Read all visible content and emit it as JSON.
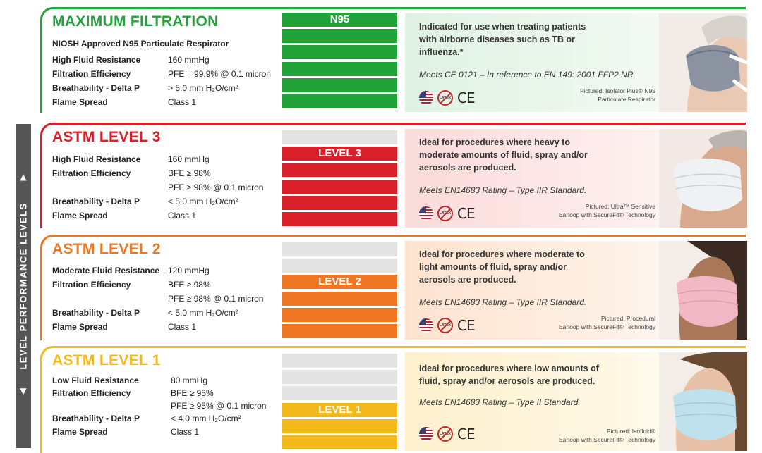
{
  "sidebar": {
    "label": "LEVEL PERFORMANCE LEVELS",
    "up_arrow": "▲",
    "down_arrow": "▼"
  },
  "sections": [
    {
      "title": "MAXIMUM FILTRATION",
      "color": "#22a33a",
      "subtitle": "NIOSH Approved N95 Particulate Respirator",
      "specs": [
        {
          "label": "High Fluid Resistance",
          "value": "160 mmHg"
        },
        {
          "label": "Filtration Efficiency",
          "value": "PFE = 99.9% @ 0.1 micron"
        },
        {
          "label": "Breathability - Delta P",
          "value": "> 5.0 mm H₂O/cm²"
        },
        {
          "label": "Flame Spread",
          "value": "Class 1"
        }
      ],
      "bar_label": "N95",
      "bars_filled": 6,
      "bars_total": 6,
      "info": "Indicated for use when treating patients with airborne diseases such as TB or influenza.*",
      "meets": "Meets CE 0121 – In reference to EN 149: 2001 FFP2 NR.",
      "pictured_line1": "Pictured: Isolator Plus® N95",
      "pictured_line2": "Particulate Respirator",
      "latex": "LATEX",
      "ce": "CE"
    },
    {
      "title": "ASTM LEVEL 3",
      "color": "#d9202a",
      "specs": [
        {
          "label": "High Fluid Resistance",
          "value": "160 mmHg"
        },
        {
          "label": "Filtration Efficiency",
          "value": "BFE ≥ 98%"
        },
        {
          "label": "",
          "value": "PFE ≥ 98% @ 0.1 micron"
        },
        {
          "label": "Breathability - Delta P",
          "value": "< 5.0 mm H₂O/cm²"
        },
        {
          "label": "Flame Spread",
          "value": "Class 1"
        }
      ],
      "bar_label": "LEVEL 3",
      "bars_filled": 5,
      "bars_total": 6,
      "info": "Ideal for procedures where heavy to moderate amounts of fluid, spray and/or aerosols are produced.",
      "meets": "Meets EN14683 Rating – Type IIR Standard.",
      "pictured_line1": "Pictured: Ultra™ Sensitive",
      "pictured_line2": "Earloop with SecureFit® Technology",
      "latex": "LATEX",
      "ce": "CE"
    },
    {
      "title": "ASTM  LEVEL 2",
      "color": "#ef7622",
      "specs": [
        {
          "label": "Moderate Fluid Resistance",
          "value": "120 mmHg"
        },
        {
          "label": "Filtration Efficiency",
          "value": "BFE ≥ 98%"
        },
        {
          "label": "",
          "value": "PFE ≥ 98% @ 0.1 micron"
        },
        {
          "label": "Breathability - Delta P",
          "value": "< 5.0 mm H₂O/cm²"
        },
        {
          "label": "Flame Spread",
          "value": "Class 1"
        }
      ],
      "bar_label": "LEVEL 2",
      "bars_filled": 4,
      "bars_total": 6,
      "info": "Ideal for procedures where moderate to light amounts of fluid, spray and/or aerosols are produced.",
      "meets": "Meets EN14683 Rating – Type IIR Standard.",
      "pictured_line1": "Pictured: Procedural",
      "pictured_line2": "Earloop with SecureFit® Technology",
      "latex": "LATEX",
      "ce": "CE"
    },
    {
      "title": "ASTM LEVEL 1",
      "color": "#f2b81c",
      "specs": [
        {
          "label": "Low Fluid Resistance",
          "value": "80 mmHg"
        },
        {
          "label": "Filtration Efficiency",
          "value": "BFE ≥ 95%"
        },
        {
          "label": "",
          "value": "PFE ≥ 95% @ 0.1 micron"
        },
        {
          "label": "Breathability - Delta P",
          "value": "< 4.0 mm  H₂O/cm²"
        },
        {
          "label": "Flame Spread",
          "value": "Class 1"
        }
      ],
      "bar_label": "LEVEL 1",
      "bars_filled": 3,
      "bars_total": 6,
      "info": "Ideal for procedures where low amounts of fluid, spray and/or aerosols are produced.",
      "meets": "Meets EN14683 Rating – Type II Standard.",
      "pictured_line1": "Pictured: Isofluid®",
      "pictured_line2": "Earloop with SecureFit® Technology",
      "latex": "LATEX",
      "ce": "CE"
    }
  ]
}
